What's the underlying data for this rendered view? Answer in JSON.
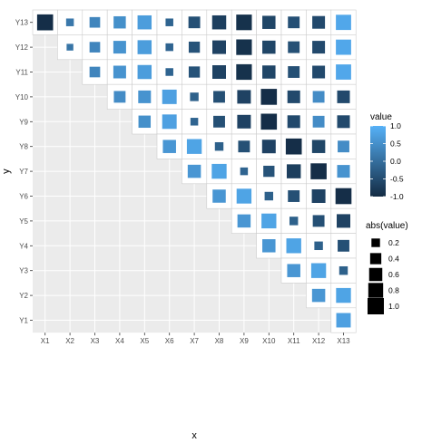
{
  "chart_data": {
    "type": "heatmap",
    "xlabel": "x",
    "ylabel": "y",
    "x_categories": [
      "X1",
      "X2",
      "X3",
      "X4",
      "X5",
      "X6",
      "X7",
      "X8",
      "X9",
      "X10",
      "X11",
      "X12",
      "X13"
    ],
    "y_categories": [
      "Y1",
      "Y2",
      "Y3",
      "Y4",
      "Y5",
      "Y6",
      "Y7",
      "Y8",
      "Y9",
      "Y10",
      "Y11",
      "Y12",
      "Y13"
    ],
    "cells": [
      {
        "x": "X1",
        "y": "Y13",
        "value": -0.95
      },
      {
        "x": "X2",
        "y": "Y13",
        "value": 0.15
      },
      {
        "x": "X3",
        "y": "Y13",
        "value": 0.35
      },
      {
        "x": "X4",
        "y": "Y13",
        "value": 0.5
      },
      {
        "x": "X5",
        "y": "Y13",
        "value": 0.7
      },
      {
        "x": "X6",
        "y": "Y13",
        "value": -0.15
      },
      {
        "x": "X7",
        "y": "Y13",
        "value": -0.45
      },
      {
        "x": "X8",
        "y": "Y13",
        "value": -0.7
      },
      {
        "x": "X9",
        "y": "Y13",
        "value": -0.9
      },
      {
        "x": "X10",
        "y": "Y13",
        "value": -0.6
      },
      {
        "x": "X11",
        "y": "Y13",
        "value": -0.45
      },
      {
        "x": "X12",
        "y": "Y13",
        "value": -0.55
      },
      {
        "x": "X13",
        "y": "Y13",
        "value": 0.85
      },
      {
        "x": "X2",
        "y": "Y12",
        "value": 0.1
      },
      {
        "x": "X3",
        "y": "Y12",
        "value": 0.35
      },
      {
        "x": "X4",
        "y": "Y12",
        "value": 0.55
      },
      {
        "x": "X5",
        "y": "Y12",
        "value": 0.7
      },
      {
        "x": "X6",
        "y": "Y12",
        "value": -0.15
      },
      {
        "x": "X7",
        "y": "Y12",
        "value": -0.4
      },
      {
        "x": "X8",
        "y": "Y12",
        "value": -0.65
      },
      {
        "x": "X9",
        "y": "Y12",
        "value": -0.9
      },
      {
        "x": "X10",
        "y": "Y12",
        "value": -0.6
      },
      {
        "x": "X11",
        "y": "Y12",
        "value": -0.45
      },
      {
        "x": "X12",
        "y": "Y12",
        "value": -0.55
      },
      {
        "x": "X13",
        "y": "Y12",
        "value": 0.85
      },
      {
        "x": "X3",
        "y": "Y11",
        "value": 0.35
      },
      {
        "x": "X4",
        "y": "Y11",
        "value": 0.55
      },
      {
        "x": "X5",
        "y": "Y11",
        "value": 0.7
      },
      {
        "x": "X6",
        "y": "Y11",
        "value": -0.15
      },
      {
        "x": "X7",
        "y": "Y11",
        "value": -0.4
      },
      {
        "x": "X8",
        "y": "Y11",
        "value": -0.65
      },
      {
        "x": "X9",
        "y": "Y11",
        "value": -0.9
      },
      {
        "x": "X10",
        "y": "Y11",
        "value": -0.6
      },
      {
        "x": "X11",
        "y": "Y11",
        "value": -0.45
      },
      {
        "x": "X12",
        "y": "Y11",
        "value": -0.55
      },
      {
        "x": "X13",
        "y": "Y11",
        "value": 0.85
      },
      {
        "x": "X4",
        "y": "Y10",
        "value": 0.45
      },
      {
        "x": "X5",
        "y": "Y10",
        "value": 0.55
      },
      {
        "x": "X6",
        "y": "Y10",
        "value": 0.75
      },
      {
        "x": "X7",
        "y": "Y10",
        "value": -0.2
      },
      {
        "x": "X8",
        "y": "Y10",
        "value": -0.45
      },
      {
        "x": "X9",
        "y": "Y10",
        "value": -0.65
      },
      {
        "x": "X10",
        "y": "Y10",
        "value": -0.95
      },
      {
        "x": "X11",
        "y": "Y10",
        "value": -0.55
      },
      {
        "x": "X12",
        "y": "Y10",
        "value": 0.45
      },
      {
        "x": "X13",
        "y": "Y10",
        "value": -0.55
      },
      {
        "x": "X5",
        "y": "Y9",
        "value": 0.5
      },
      {
        "x": "X6",
        "y": "Y9",
        "value": 0.75
      },
      {
        "x": "X7",
        "y": "Y9",
        "value": -0.15
      },
      {
        "x": "X8",
        "y": "Y9",
        "value": -0.45
      },
      {
        "x": "X9",
        "y": "Y9",
        "value": -0.65
      },
      {
        "x": "X10",
        "y": "Y9",
        "value": -0.95
      },
      {
        "x": "X11",
        "y": "Y9",
        "value": -0.55
      },
      {
        "x": "X12",
        "y": "Y9",
        "value": 0.45
      },
      {
        "x": "X13",
        "y": "Y9",
        "value": -0.55
      },
      {
        "x": "X6",
        "y": "Y8",
        "value": 0.6
      },
      {
        "x": "X7",
        "y": "Y8",
        "value": 0.8
      },
      {
        "x": "X8",
        "y": "Y8",
        "value": -0.2
      },
      {
        "x": "X9",
        "y": "Y8",
        "value": -0.45
      },
      {
        "x": "X10",
        "y": "Y8",
        "value": -0.65
      },
      {
        "x": "X11",
        "y": "Y8",
        "value": -0.95
      },
      {
        "x": "X12",
        "y": "Y8",
        "value": -0.6
      },
      {
        "x": "X13",
        "y": "Y8",
        "value": 0.45
      },
      {
        "x": "X7",
        "y": "Y7",
        "value": 0.6
      },
      {
        "x": "X8",
        "y": "Y7",
        "value": 0.8
      },
      {
        "x": "X9",
        "y": "Y7",
        "value": -0.15
      },
      {
        "x": "X10",
        "y": "Y7",
        "value": -0.4
      },
      {
        "x": "X11",
        "y": "Y7",
        "value": -0.7
      },
      {
        "x": "X12",
        "y": "Y7",
        "value": -0.95
      },
      {
        "x": "X13",
        "y": "Y7",
        "value": 0.55
      },
      {
        "x": "X8",
        "y": "Y6",
        "value": 0.6
      },
      {
        "x": "X9",
        "y": "Y6",
        "value": 0.8
      },
      {
        "x": "X10",
        "y": "Y6",
        "value": -0.2
      },
      {
        "x": "X11",
        "y": "Y6",
        "value": -0.45
      },
      {
        "x": "X12",
        "y": "Y6",
        "value": -0.65
      },
      {
        "x": "X13",
        "y": "Y6",
        "value": -0.95
      },
      {
        "x": "X9",
        "y": "Y5",
        "value": 0.6
      },
      {
        "x": "X10",
        "y": "Y5",
        "value": 0.8
      },
      {
        "x": "X11",
        "y": "Y5",
        "value": -0.2
      },
      {
        "x": "X12",
        "y": "Y5",
        "value": -0.45
      },
      {
        "x": "X13",
        "y": "Y5",
        "value": -0.65
      },
      {
        "x": "X10",
        "y": "Y4",
        "value": 0.6
      },
      {
        "x": "X11",
        "y": "Y4",
        "value": 0.8
      },
      {
        "x": "X12",
        "y": "Y4",
        "value": -0.2
      },
      {
        "x": "X13",
        "y": "Y4",
        "value": -0.45
      },
      {
        "x": "X11",
        "y": "Y3",
        "value": 0.6
      },
      {
        "x": "X12",
        "y": "Y3",
        "value": 0.8
      },
      {
        "x": "X13",
        "y": "Y3",
        "value": -0.2
      },
      {
        "x": "X12",
        "y": "Y2",
        "value": 0.6
      },
      {
        "x": "X13",
        "y": "Y2",
        "value": 0.8
      },
      {
        "x": "X13",
        "y": "Y1",
        "value": 0.75
      }
    ],
    "color_legend": {
      "title": "value",
      "range": [
        -1,
        1
      ],
      "low_color": "#132B43",
      "high_color": "#56B1F7",
      "breaks": [
        1.0,
        0.5,
        0.0,
        -0.5,
        -1.0
      ],
      "break_labels": [
        "1.0",
        "0.5",
        "0.0",
        "-0.5",
        "-1.0"
      ]
    },
    "size_legend": {
      "title": "abs(value)",
      "breaks": [
        0.2,
        0.4,
        0.6,
        0.8,
        1.0
      ],
      "break_labels": [
        "0.2",
        "0.4",
        "0.6",
        "0.8",
        "1.0"
      ]
    },
    "panel_background": "#EBEBEB",
    "tile_background": "#FFFFFF",
    "grid": true,
    "legend_position": "right"
  }
}
